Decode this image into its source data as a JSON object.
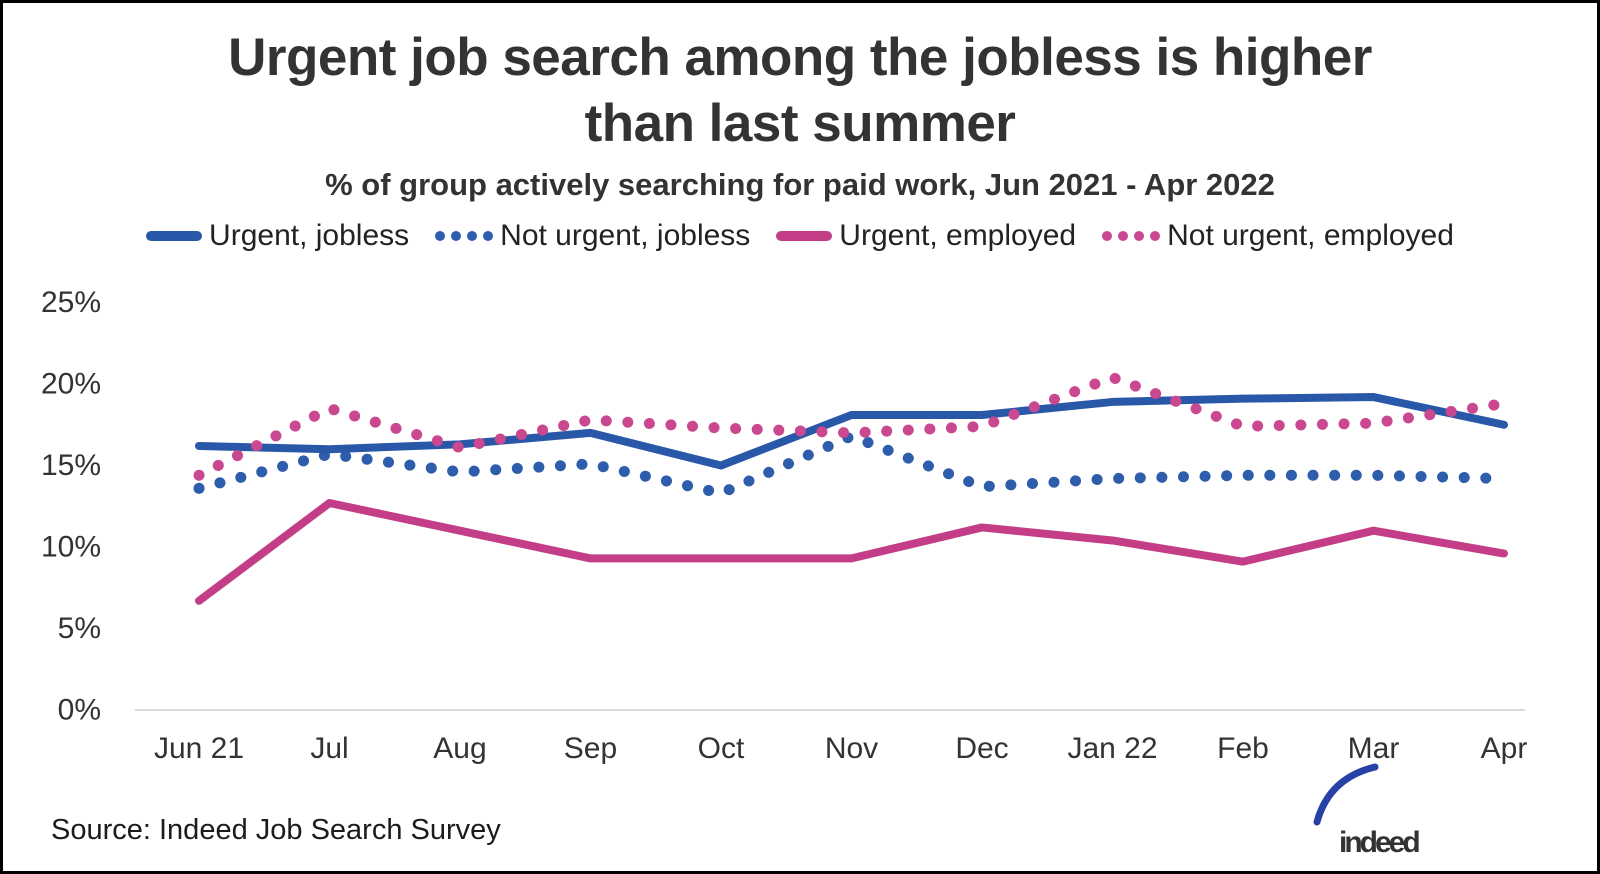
{
  "header": {
    "title_line1": "Urgent job search among the jobless is higher",
    "title_line2": "than last summer",
    "subtitle": "% of group actively searching for paid work, Jun 2021 - Apr 2022"
  },
  "legend": [
    {
      "label": "Urgent, jobless",
      "style": "solid",
      "color": "#2a58a8"
    },
    {
      "label": "Not urgent, jobless",
      "style": "dotted",
      "color": "#2e5dac"
    },
    {
      "label": "Urgent, employed",
      "style": "solid",
      "color": "#c33e87"
    },
    {
      "label": "Not urgent, employed",
      "style": "dotted",
      "color": "#ca4890"
    }
  ],
  "chart_data": {
    "type": "line",
    "title": "Urgent job search among the jobless is higher than last summer",
    "subtitle": "% of group actively searching for paid work, Jun 2021 - Apr 2022",
    "categories": [
      "Jun 21",
      "Jul",
      "Aug",
      "Sep",
      "Oct",
      "Nov",
      "Dec",
      "Jan 22",
      "Feb",
      "Mar",
      "Apr"
    ],
    "series": [
      {
        "name": "Urgent, jobless",
        "style": "solid",
        "color": "#2a58a8",
        "values": [
          16.2,
          16.0,
          16.3,
          17.0,
          15.0,
          18.1,
          18.1,
          18.9,
          19.1,
          19.2,
          17.5
        ]
      },
      {
        "name": "Not urgent, jobless",
        "style": "dotted",
        "color": "#2e5dac",
        "values": [
          13.6,
          15.7,
          14.6,
          15.1,
          13.3,
          16.8,
          13.7,
          14.2,
          14.4,
          14.4,
          14.2
        ]
      },
      {
        "name": "Urgent, employed",
        "style": "solid",
        "color": "#c33e87",
        "values": [
          6.7,
          12.7,
          11.0,
          9.3,
          9.3,
          9.3,
          11.2,
          10.4,
          9.1,
          11.0,
          9.6
        ]
      },
      {
        "name": "Not urgent, employed",
        "style": "dotted",
        "color": "#ca4890",
        "values": [
          14.4,
          18.5,
          16.1,
          17.8,
          17.3,
          17.0,
          17.4,
          20.4,
          17.4,
          17.6,
          18.8
        ]
      }
    ],
    "ylim": [
      0,
      25
    ],
    "yticks": [
      0,
      5,
      10,
      15,
      20,
      25
    ],
    "ytick_labels": [
      "0%",
      "5%",
      "10%",
      "15%",
      "20%",
      "25%"
    ],
    "xlabel": "",
    "ylabel": "",
    "grid": "baseline-only",
    "legend_position": "top",
    "baseline_color": "#dadada"
  },
  "footer": {
    "source": "Source: Indeed Job Search Survey",
    "logo_text": "indeed",
    "logo_color": "#2741a6"
  }
}
